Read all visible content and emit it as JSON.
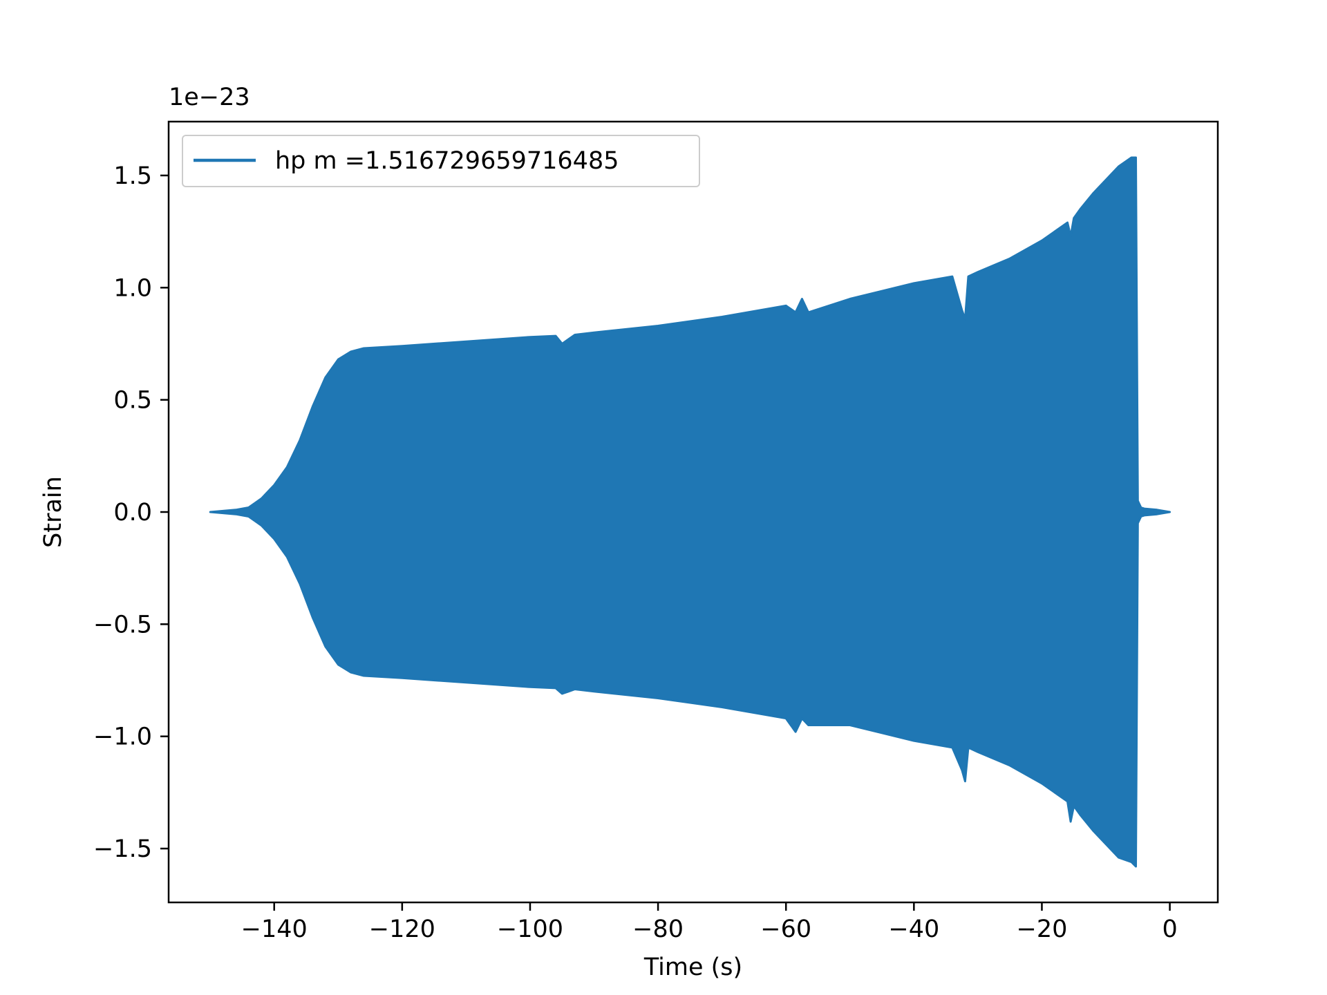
{
  "chart_data": {
    "type": "area",
    "title": "",
    "xlabel": "Time (s)",
    "ylabel": "Strain",
    "offset_text": "1e−23",
    "y_scale_exponent": -23,
    "xlim": [
      -156.5,
      7.5
    ],
    "ylim": [
      -1.74,
      1.74
    ],
    "xticks": [
      -140,
      -120,
      -100,
      -80,
      -60,
      -40,
      -20,
      0
    ],
    "xtick_labels": [
      "−140",
      "−120",
      "−100",
      "−80",
      "−60",
      "−40",
      "−20",
      "0"
    ],
    "yticks": [
      -1.5,
      -1.0,
      -0.5,
      0.0,
      0.5,
      1.0,
      1.5
    ],
    "ytick_labels": [
      "−1.5",
      "−1.0",
      "−0.5",
      "0.0",
      "0.5",
      "1.0",
      "1.5"
    ],
    "grid": false,
    "legend_position": "upper-left",
    "series": [
      {
        "name": "hp m =1.516729659716485",
        "color": "#1f77b4",
        "note_not_rendered": "",
        "envelope": {
          "t": [
            -150,
            -148,
            -146,
            -144,
            -143,
            -142,
            -140,
            -138,
            -136,
            -134,
            -132,
            -130,
            -128,
            -126,
            -120,
            -110,
            -100,
            -96,
            -95,
            -94,
            -93,
            -90,
            -80,
            -70,
            -60,
            -58.5,
            -57.5,
            -56.5,
            -50,
            -40,
            -34,
            -32.5,
            -32,
            -31.5,
            -30,
            -25,
            -20,
            -16,
            -15.5,
            -15,
            -14,
            -12,
            -10,
            -8,
            -6,
            -5.3,
            -5.0,
            -4.5,
            -4,
            -2,
            0
          ],
          "upper": [
            0.0,
            0.005,
            0.01,
            0.02,
            0.04,
            0.06,
            0.12,
            0.2,
            0.32,
            0.47,
            0.6,
            0.68,
            0.715,
            0.73,
            0.74,
            0.76,
            0.78,
            0.785,
            0.75,
            0.77,
            0.79,
            0.8,
            0.83,
            0.87,
            0.92,
            0.89,
            0.95,
            0.89,
            0.95,
            1.02,
            1.05,
            0.9,
            0.86,
            1.05,
            1.07,
            1.13,
            1.21,
            1.29,
            1.23,
            1.31,
            1.35,
            1.42,
            1.48,
            1.54,
            1.58,
            1.58,
            0.05,
            0.02,
            0.015,
            0.01,
            0.0
          ],
          "lower": [
            0.0,
            -0.005,
            -0.01,
            -0.02,
            -0.04,
            -0.06,
            -0.12,
            -0.2,
            -0.32,
            -0.47,
            -0.6,
            -0.68,
            -0.715,
            -0.73,
            -0.74,
            -0.76,
            -0.78,
            -0.785,
            -0.81,
            -0.8,
            -0.79,
            -0.8,
            -0.83,
            -0.87,
            -0.92,
            -0.98,
            -0.92,
            -0.95,
            -0.95,
            -1.02,
            -1.05,
            -1.15,
            -1.2,
            -1.05,
            -1.07,
            -1.13,
            -1.21,
            -1.29,
            -1.38,
            -1.31,
            -1.35,
            -1.42,
            -1.48,
            -1.54,
            -1.56,
            -1.58,
            -0.05,
            -0.02,
            -0.015,
            -0.01,
            0.0
          ]
        }
      }
    ]
  }
}
